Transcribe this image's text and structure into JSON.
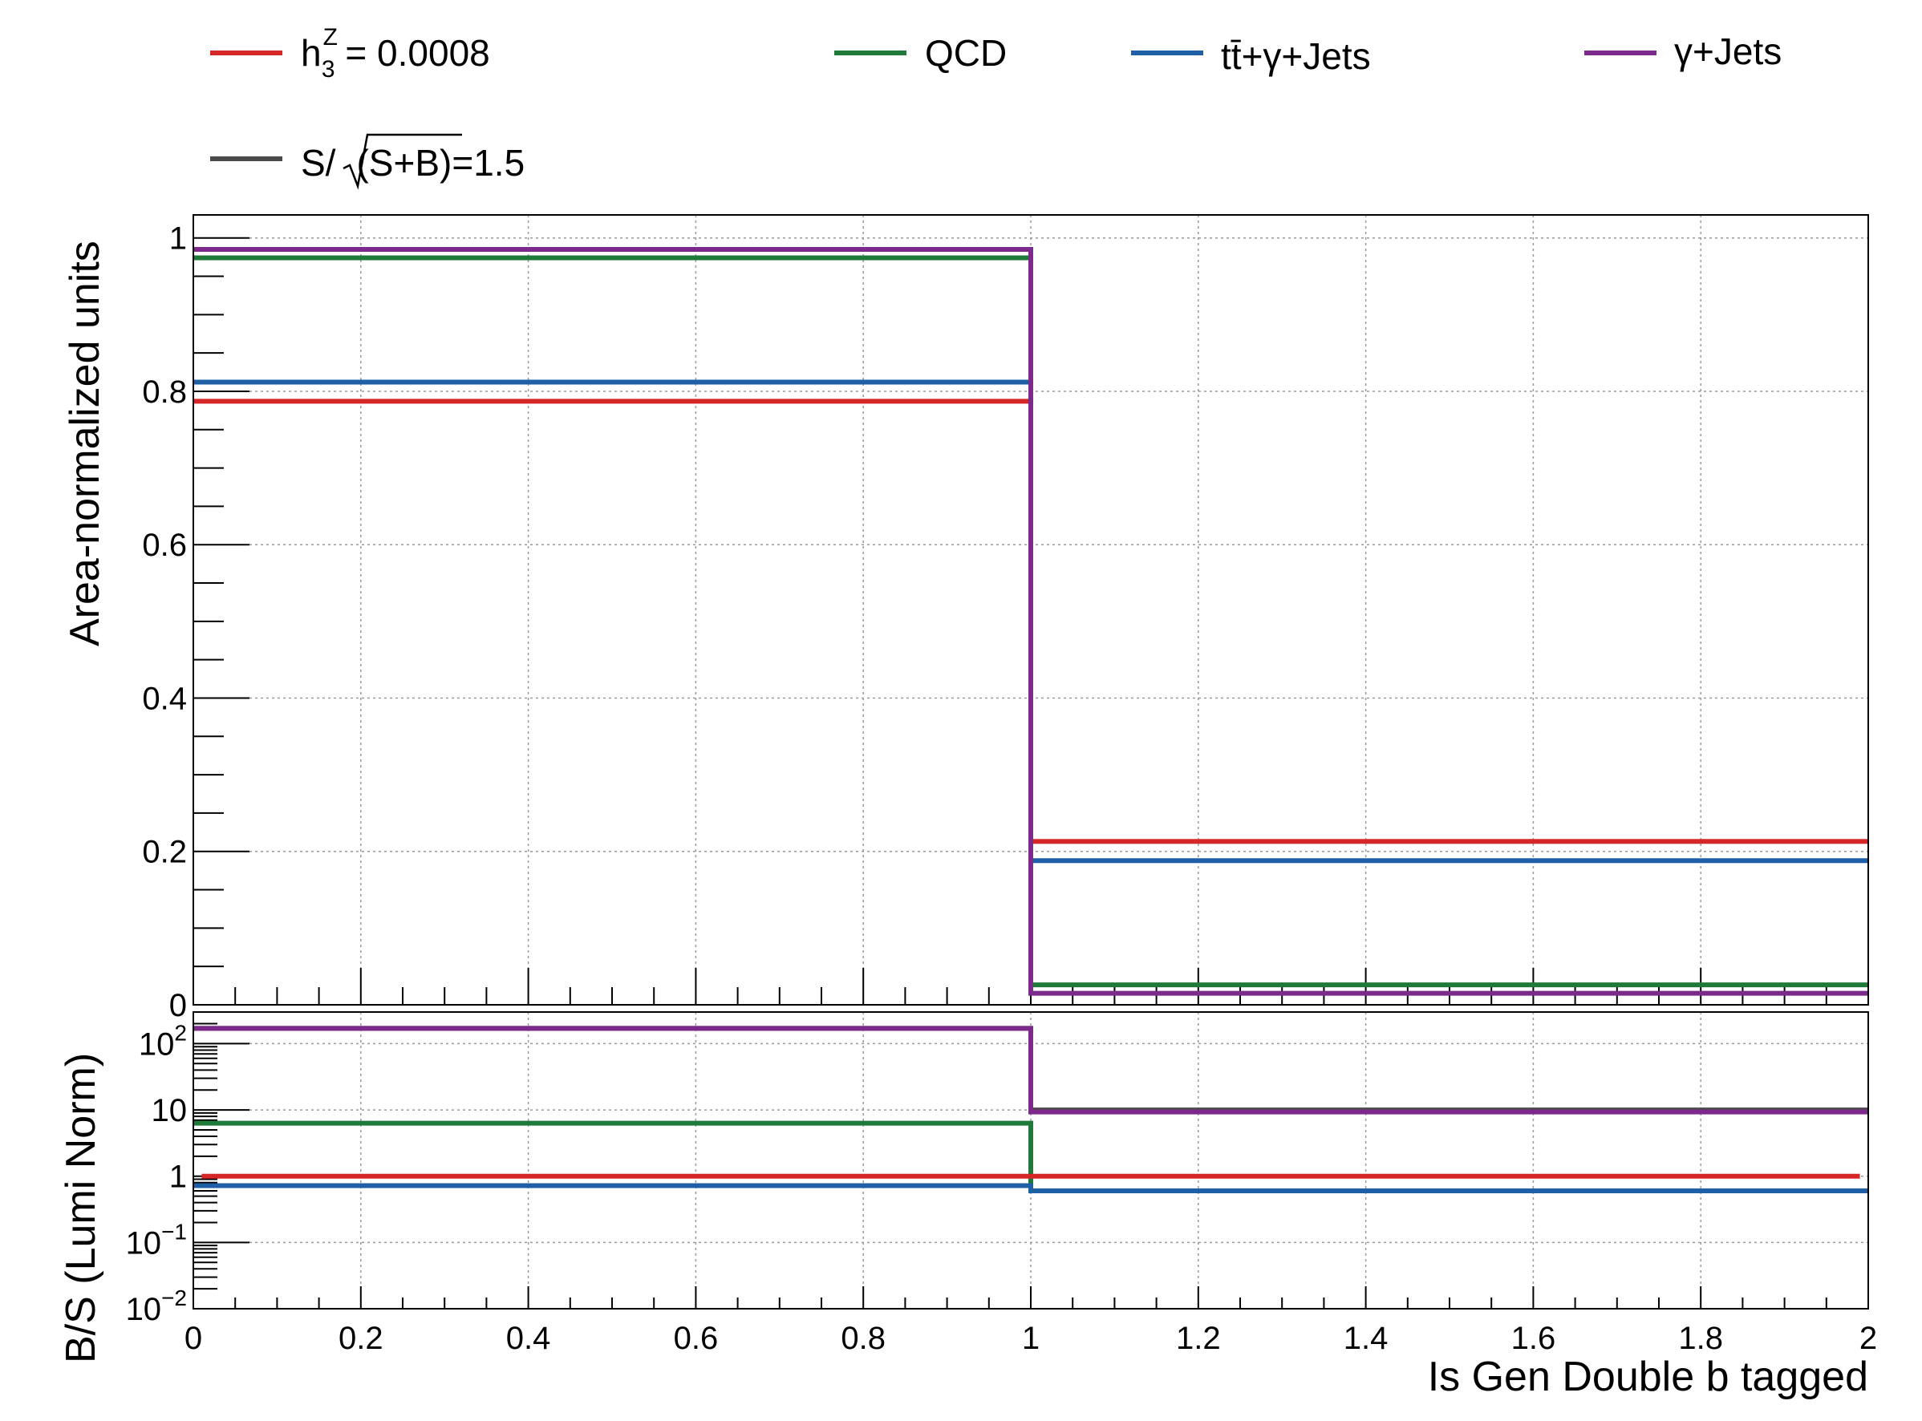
{
  "legend": [
    {
      "id": "signal",
      "label_main": "h",
      "label_sup": "Z",
      "label_sub": "3",
      "label_rest": " = 0.0008",
      "color": "#d62728"
    },
    {
      "id": "qcd",
      "label": "QCD",
      "color": "#1f7a3a"
    },
    {
      "id": "ttgamma",
      "label_tt": "tt̄",
      "label_rest": "+γ+Jets",
      "color": "#1f5fa6"
    },
    {
      "id": "gammajets",
      "label": "γ+Jets",
      "color": "#7b2a8c"
    },
    {
      "id": "significance",
      "label_pre": "S/",
      "label_rad": "(S+B)",
      "label_rest": "=1.5",
      "color": "#4a4a4a"
    }
  ],
  "chart_data": [
    {
      "type": "line",
      "step": true,
      "name": "upper-panel",
      "ylabel": "Area-normalized units",
      "xlim": [
        0,
        2
      ],
      "ylim": [
        0,
        1.03
      ],
      "yticks": [
        {
          "v": 0,
          "label": "0"
        },
        {
          "v": 0.2,
          "label": "0.2"
        },
        {
          "v": 0.4,
          "label": "0.4"
        },
        {
          "v": 0.6,
          "label": "0.6"
        },
        {
          "v": 0.8,
          "label": "0.8"
        },
        {
          "v": 1,
          "label": "1"
        }
      ],
      "bin_edges": [
        0,
        1,
        2
      ],
      "grid": true,
      "series": [
        {
          "name": "h3Z = 0.0008",
          "color": "#d62728",
          "values": [
            0.787,
            0.213
          ]
        },
        {
          "name": "QCD",
          "color": "#1f7a3a",
          "values": [
            0.974,
            0.026
          ]
        },
        {
          "name": "tt̄+γ+Jets",
          "color": "#1f5fa6",
          "values": [
            0.812,
            0.188
          ]
        },
        {
          "name": "γ+Jets",
          "color": "#7b2a8c",
          "values": [
            0.985,
            0.015
          ]
        }
      ]
    },
    {
      "type": "line",
      "step": true,
      "name": "ratio-panel",
      "xlabel": "Is Gen Double b tagged",
      "ylabel": "B/S (Lumi Norm)",
      "xlim": [
        0,
        2
      ],
      "ylim": [
        0.01,
        300
      ],
      "yscale": "log",
      "xticks": [
        {
          "v": 0,
          "label": "0"
        },
        {
          "v": 0.2,
          "label": "0.2"
        },
        {
          "v": 0.4,
          "label": "0.4"
        },
        {
          "v": 0.6,
          "label": "0.6"
        },
        {
          "v": 0.8,
          "label": "0.8"
        },
        {
          "v": 1,
          "label": "1"
        },
        {
          "v": 1.2,
          "label": "1.2"
        },
        {
          "v": 1.4,
          "label": "1.4"
        },
        {
          "v": 1.6,
          "label": "1.6"
        },
        {
          "v": 1.8,
          "label": "1.8"
        },
        {
          "v": 2,
          "label": "2"
        }
      ],
      "yticks": [
        {
          "v": 0.01,
          "base": "10",
          "exp": "−2"
        },
        {
          "v": 0.1,
          "base": "10",
          "exp": "−1"
        },
        {
          "v": 1,
          "base": "1",
          "exp": ""
        },
        {
          "v": 10,
          "base": "10",
          "exp": ""
        },
        {
          "v": 100,
          "base": "10",
          "exp": "2"
        }
      ],
      "bin_edges": [
        0,
        1,
        2
      ],
      "grid": true,
      "series": [
        {
          "name": "S/√(S+B)=1.5",
          "color": "#4a4a4a",
          "values": [
            170,
            10
          ]
        },
        {
          "name": "γ+Jets",
          "color": "#7b2a8c",
          "values": [
            170,
            9.3
          ]
        },
        {
          "name": "QCD",
          "color": "#1f7a3a",
          "values": [
            6.3,
            0.6
          ]
        },
        {
          "name": "h3Z = 0.0008",
          "color": "#d62728",
          "values": [
            1.0,
            1.0
          ],
          "x_range": [
            0.01,
            1.99
          ]
        },
        {
          "name": "tt̄+γ+Jets",
          "color": "#1f5fa6",
          "values": [
            0.72,
            0.6
          ]
        }
      ]
    }
  ]
}
